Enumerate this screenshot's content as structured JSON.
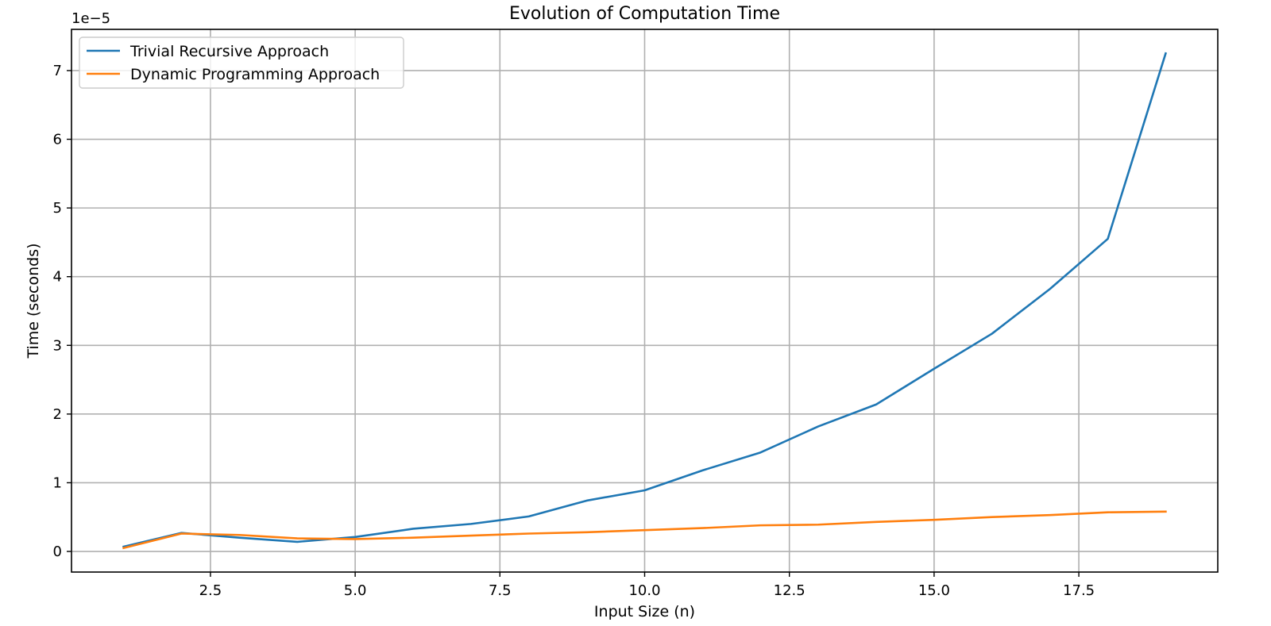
{
  "chart_data": {
    "type": "line",
    "title": "Evolution of Computation Time",
    "xlabel": "Input Size (n)",
    "ylabel": "Time (seconds)",
    "y_offset_label": "1e−5",
    "xlim": [
      0.1,
      19.9
    ],
    "ylim": [
      -0.3,
      7.6
    ],
    "xticks": [
      2.5,
      5.0,
      7.5,
      10.0,
      12.5,
      15.0,
      17.5
    ],
    "xtick_labels": [
      "2.5",
      "5.0",
      "7.5",
      "10.0",
      "12.5",
      "15.0",
      "17.5"
    ],
    "yticks": [
      0,
      1,
      2,
      3,
      4,
      5,
      6,
      7
    ],
    "ytick_labels": [
      "0",
      "1",
      "2",
      "3",
      "4",
      "5",
      "6",
      "7"
    ],
    "grid": true,
    "legend_position": "top-left",
    "x": [
      1,
      2,
      3,
      4,
      5,
      6,
      7,
      8,
      9,
      10,
      11,
      12,
      13,
      14,
      15,
      16,
      17,
      18,
      19
    ],
    "series": [
      {
        "name": "Trivial Recursive Approach",
        "color": "#1f77b4",
        "values": [
          0.07,
          0.27,
          0.2,
          0.14,
          0.21,
          0.33,
          0.4,
          0.51,
          0.74,
          0.89,
          1.18,
          1.44,
          1.82,
          2.14,
          2.66,
          3.17,
          3.82,
          4.55,
          7.25
        ]
      },
      {
        "name": "Dynamic Programming Approach",
        "color": "#ff7f0e",
        "values": [
          0.05,
          0.26,
          0.24,
          0.19,
          0.18,
          0.2,
          0.23,
          0.26,
          0.28,
          0.31,
          0.34,
          0.38,
          0.39,
          0.43,
          0.46,
          0.5,
          0.53,
          0.57,
          0.58
        ]
      }
    ]
  }
}
